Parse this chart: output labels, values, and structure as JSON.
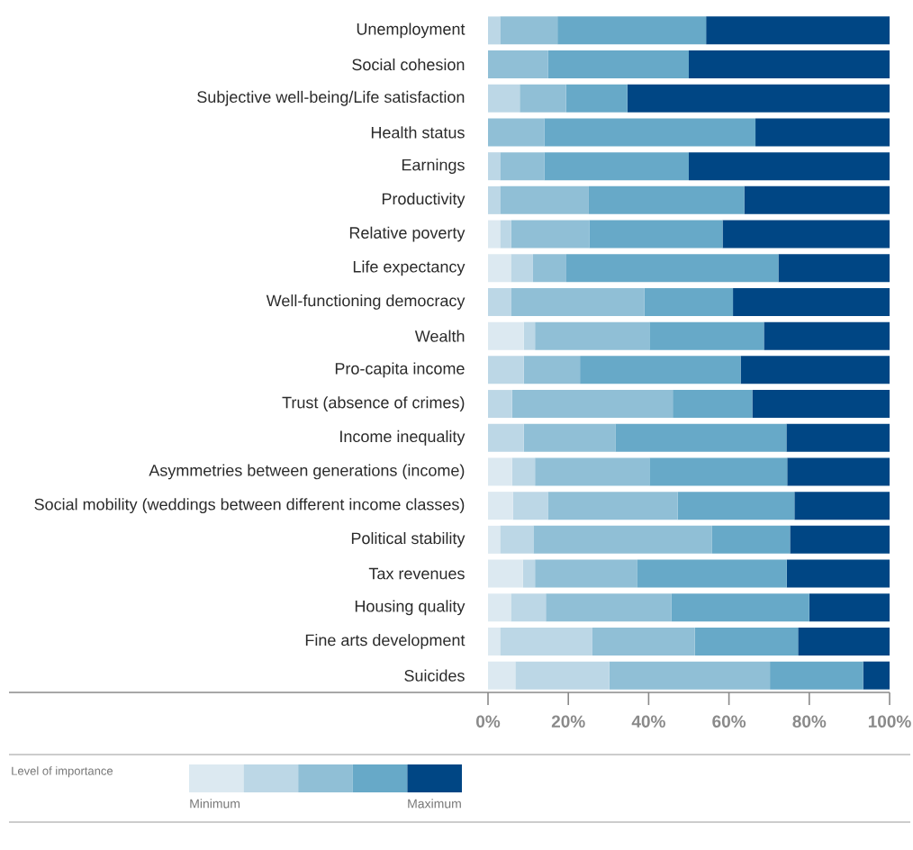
{
  "chart_data": {
    "type": "bar",
    "orientation": "horizontal",
    "stacked": true,
    "legend": "bottom",
    "legend_title": "Level of importance",
    "categories": [
      "Unemployment",
      "Social cohesion",
      "Subjective well-being/Life satisfaction",
      "Health status",
      "Earnings",
      "Productivity",
      "Relative poverty",
      "Life expectancy",
      "Well-functioning democracy",
      "Wealth",
      "Pro-capita income",
      "Trust (absence of crimes)",
      "Income inequality",
      "Asymmetries between generations (income)",
      "Social mobility (weddings between different income classes)",
      "Political stability",
      "Tax revenues",
      "Housing quality",
      "Fine arts development",
      "Suicides"
    ],
    "series": [
      {
        "name": "Minimum",
        "color": "#dce9f1",
        "values": [
          0,
          0,
          0,
          0,
          0,
          0,
          3.0,
          5.7,
          0,
          8.9,
          0,
          0,
          0,
          6.0,
          6.2,
          3.0,
          8.7,
          5.7,
          3.0,
          6.8
        ]
      },
      {
        "color": "#bcd7e6",
        "values": [
          3.0,
          0,
          7.9,
          0,
          3.0,
          3.0,
          2.8,
          5.5,
          5.7,
          2.8,
          8.9,
          6.0,
          8.9,
          5.7,
          8.7,
          8.3,
          3.0,
          8.7,
          23.0,
          23.4
        ]
      },
      {
        "color": "#90bfd6",
        "values": [
          14.3,
          14.9,
          11.5,
          14.0,
          11.0,
          22.1,
          19.4,
          8.3,
          33.2,
          28.5,
          14.0,
          40.0,
          22.8,
          28.5,
          32.3,
          44.5,
          25.5,
          31.3,
          25.5,
          40.0
        ]
      },
      {
        "color": "#67a9c8",
        "values": [
          37.0,
          35.1,
          15.3,
          52.6,
          36.0,
          38.7,
          33.2,
          52.8,
          22.1,
          28.5,
          40.0,
          19.8,
          42.6,
          34.3,
          29.1,
          19.4,
          37.2,
          34.3,
          25.7,
          23.2
        ]
      },
      {
        "name": "Maximum",
        "color": "#004684",
        "values": [
          45.7,
          50.0,
          65.3,
          33.4,
          50.0,
          36.2,
          41.6,
          27.7,
          39.0,
          31.3,
          37.1,
          34.2,
          25.7,
          25.5,
          23.7,
          24.8,
          25.6,
          20.0,
          22.8,
          6.6
        ]
      }
    ],
    "xlim": [
      0,
      100
    ],
    "xticks": [
      {
        "value": 0,
        "label": "0%"
      },
      {
        "value": 20,
        "label": "20%"
      },
      {
        "value": 40,
        "label": "40%"
      },
      {
        "value": 60,
        "label": "60%"
      },
      {
        "value": 80,
        "label": "80%"
      },
      {
        "value": 100,
        "label": "100%"
      }
    ]
  }
}
